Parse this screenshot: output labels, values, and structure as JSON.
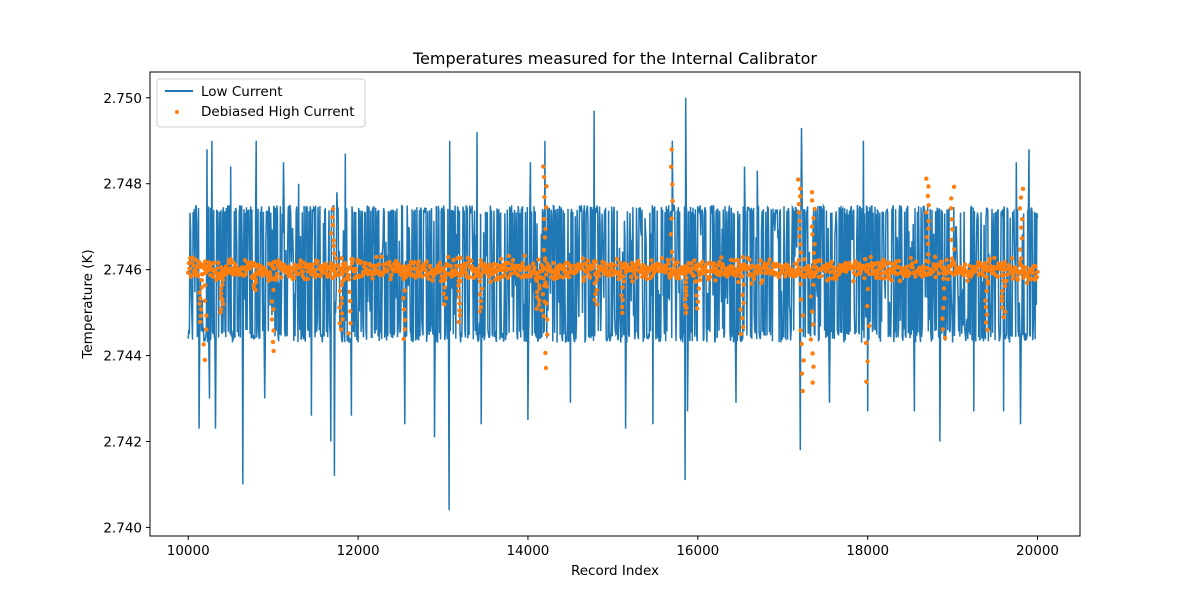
{
  "chart_data": {
    "type": "line",
    "title": "Temperatures measured for the Internal Calibrator",
    "xlabel": "Record Index",
    "ylabel": "Temperature (K)",
    "xlim": [
      9550,
      20500
    ],
    "ylim": [
      2.7398,
      2.7506
    ],
    "xticks": [
      10000,
      12000,
      14000,
      16000,
      18000,
      20000
    ],
    "yticks": [
      2.74,
      2.742,
      2.744,
      2.746,
      2.748,
      2.75
    ],
    "ytick_labels": [
      "2.740",
      "2.742",
      "2.744",
      "2.746",
      "2.748",
      "2.750"
    ],
    "grid": false,
    "legend_position": "upper-left",
    "series": [
      {
        "name": "Low Current",
        "kind": "line",
        "color": "#1f77b4",
        "x_range": [
          10000,
          20000
        ],
        "band_upper": 2.7475,
        "band_lower": 2.7443,
        "spikes_high": [
          [
            10090,
            2.7475
          ],
          [
            10220,
            2.7488
          ],
          [
            10280,
            2.749
          ],
          [
            10500,
            2.7484
          ],
          [
            10800,
            2.749
          ],
          [
            11120,
            2.7485
          ],
          [
            11300,
            2.748
          ],
          [
            11750,
            2.7478
          ],
          [
            11850,
            2.7487
          ],
          [
            13080,
            2.749
          ],
          [
            13400,
            2.7492
          ],
          [
            14030,
            2.7485
          ],
          [
            14200,
            2.749
          ],
          [
            14780,
            2.7497
          ],
          [
            15700,
            2.749
          ],
          [
            15860,
            2.75
          ],
          [
            16550,
            2.7484
          ],
          [
            16700,
            2.7483
          ],
          [
            17220,
            2.7493
          ],
          [
            17950,
            2.749
          ],
          [
            18550,
            2.7483
          ],
          [
            18850,
            2.7492
          ],
          [
            19250,
            2.7481
          ],
          [
            19750,
            2.7485
          ],
          [
            19900,
            2.7488
          ]
        ],
        "spikes_low": [
          [
            10130,
            2.7423
          ],
          [
            10250,
            2.743
          ],
          [
            10320,
            2.7423
          ],
          [
            10640,
            2.741
          ],
          [
            10900,
            2.743
          ],
          [
            11450,
            2.7426
          ],
          [
            11680,
            2.742
          ],
          [
            11720,
            2.7412
          ],
          [
            11920,
            2.7426
          ],
          [
            12550,
            2.7424
          ],
          [
            12900,
            2.7421
          ],
          [
            13070,
            2.7404
          ],
          [
            13450,
            2.7424
          ],
          [
            14000,
            2.7425
          ],
          [
            14500,
            2.7429
          ],
          [
            15150,
            2.7423
          ],
          [
            15470,
            2.7424
          ],
          [
            15850,
            2.7411
          ],
          [
            15880,
            2.7427
          ],
          [
            16450,
            2.7429
          ],
          [
            17210,
            2.7418
          ],
          [
            17550,
            2.7429
          ],
          [
            18000,
            2.7427
          ],
          [
            18550,
            2.7427
          ],
          [
            18850,
            2.742
          ],
          [
            19250,
            2.7427
          ],
          [
            19600,
            2.7427
          ],
          [
            19800,
            2.7424
          ]
        ]
      },
      {
        "name": "Debiased High Current",
        "kind": "scatter",
        "color": "#ff7f0e",
        "x_range": [
          10000,
          20000
        ],
        "center": 2.746,
        "spread": 0.00012,
        "outlier_clusters": [
          [
            10150,
            2.7448
          ],
          [
            10200,
            2.7439
          ],
          [
            10400,
            2.745
          ],
          [
            10780,
            2.7455
          ],
          [
            11000,
            2.7441
          ],
          [
            11700,
            2.7474
          ],
          [
            11800,
            2.7446
          ],
          [
            11900,
            2.7445
          ],
          [
            12550,
            2.7444
          ],
          [
            13020,
            2.7452
          ],
          [
            13200,
            2.7448
          ],
          [
            13450,
            2.745
          ],
          [
            14120,
            2.7451
          ],
          [
            14180,
            2.7449
          ],
          [
            14200,
            2.7484
          ],
          [
            14220,
            2.7437
          ],
          [
            14800,
            2.7452
          ],
          [
            15120,
            2.745
          ],
          [
            15700,
            2.7488
          ],
          [
            15850,
            2.745
          ],
          [
            16000,
            2.7451
          ],
          [
            16520,
            2.7445
          ],
          [
            17200,
            2.7481
          ],
          [
            17230,
            2.7432
          ],
          [
            17350,
            2.7434
          ],
          [
            17360,
            2.7478
          ],
          [
            18000,
            2.7434
          ],
          [
            18700,
            2.7481
          ],
          [
            18900,
            2.7444
          ],
          [
            19000,
            2.7479
          ],
          [
            19400,
            2.7446
          ],
          [
            19600,
            2.7449
          ],
          [
            19810,
            2.7479
          ]
        ]
      }
    ]
  }
}
